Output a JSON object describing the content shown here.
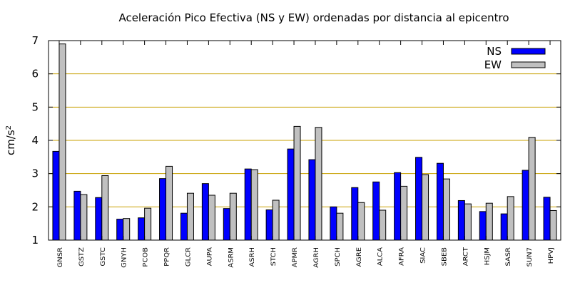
{
  "chart_data": {
    "type": "bar",
    "title": "Aceleración Pico Efectiva (NS y EW) ordenadas por distancia al epicentro",
    "xlabel": "",
    "ylabel": "cm/s",
    "ylabel_superscript": "2",
    "ylim": [
      1,
      7
    ],
    "yticks": [
      "1",
      "2",
      "3",
      "4",
      "5",
      "6",
      "7"
    ],
    "grid": "horizontal",
    "legend_position": "top-right",
    "categories": [
      "GNSR",
      "GSTZ",
      "GSTC",
      "GNYH",
      "PCOB",
      "PPQR",
      "GLCR",
      "AUPA",
      "ASRM",
      "ASRH",
      "STCH",
      "APMR",
      "AGRH",
      "SPCH",
      "AGRE",
      "ALCA",
      "AFRA",
      "SIAC",
      "SBEB",
      "ARCT",
      "HSJM",
      "SASR",
      "SUN7",
      "HPVJ"
    ],
    "series": [
      {
        "name": "NS",
        "color": "#0000ff",
        "values": [
          3.67,
          2.47,
          2.28,
          1.63,
          1.67,
          2.85,
          1.81,
          2.7,
          1.95,
          3.14,
          1.91,
          3.74,
          3.42,
          2.0,
          2.58,
          2.75,
          3.03,
          3.49,
          3.31,
          2.19,
          1.86,
          1.79,
          3.1,
          2.29
        ]
      },
      {
        "name": "EW",
        "color": "#c0c0c0",
        "values": [
          6.9,
          2.37,
          2.94,
          1.65,
          1.96,
          3.22,
          2.41,
          2.35,
          2.41,
          3.12,
          2.2,
          4.42,
          4.39,
          1.81,
          2.13,
          1.9,
          2.62,
          2.97,
          2.84,
          2.09,
          2.11,
          2.31,
          4.09,
          1.89
        ]
      }
    ]
  }
}
